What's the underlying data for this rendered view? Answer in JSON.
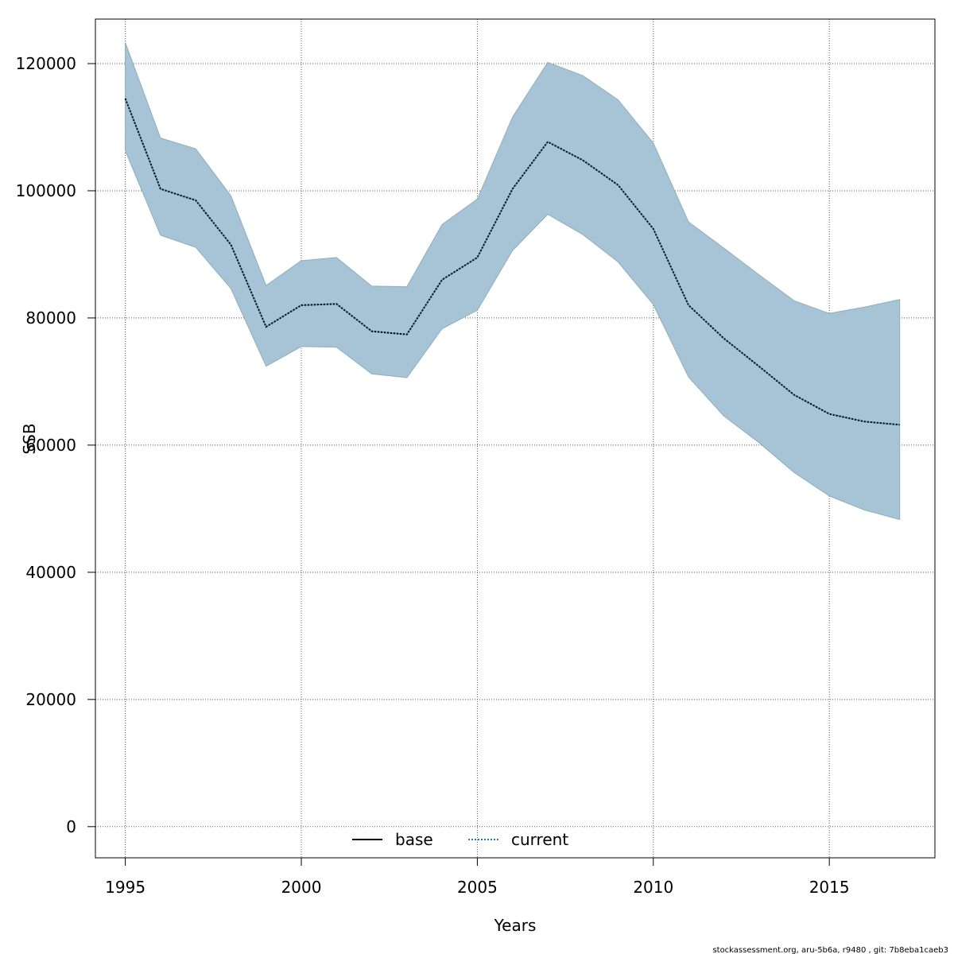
{
  "chart_data": {
    "type": "line",
    "xlabel": "Years",
    "ylabel": "SSB",
    "xlim": [
      1994.15,
      2018.0
    ],
    "ylim": [
      -4900,
      127000
    ],
    "xticks": [
      1995,
      2000,
      2005,
      2010,
      2015
    ],
    "yticks": [
      0,
      20000,
      40000,
      60000,
      80000,
      100000,
      120000
    ],
    "grid": true,
    "legend_position": "bottom-center",
    "years": [
      1995,
      1996,
      1997,
      1998,
      1999,
      2000,
      2001,
      2002,
      2003,
      2004,
      2005,
      2006,
      2007,
      2008,
      2009,
      2010,
      2011,
      2012,
      2013,
      2014,
      2015,
      2016,
      2017
    ],
    "series": [
      {
        "name": "base",
        "line_style": "solid",
        "color": "#000000",
        "values": [
          114500,
          100300,
          98500,
          91500,
          78600,
          82000,
          82200,
          77900,
          77400,
          86000,
          89500,
          100300,
          107700,
          104800,
          100900,
          94000,
          82000,
          76800,
          72400,
          67900,
          64900,
          63700,
          63200
        ]
      },
      {
        "name": "current",
        "line_style": "dotted",
        "color": "#1f77b4",
        "values": [
          114500,
          100300,
          98500,
          91500,
          78600,
          82000,
          82200,
          77900,
          77400,
          86000,
          89500,
          100300,
          107700,
          104800,
          100900,
          94000,
          82000,
          76800,
          72400,
          67900,
          64900,
          63700,
          63200
        ]
      }
    ],
    "confidence_band": {
      "color": "#a6c4d5",
      "upper": [
        123300,
        108300,
        106600,
        99200,
        85100,
        89000,
        89500,
        85000,
        84900,
        94700,
        98700,
        111600,
        120200,
        118100,
        114300,
        107500,
        95100,
        91000,
        86800,
        82700,
        80700,
        81700,
        82900
      ],
      "lower": [
        106300,
        93000,
        91100,
        84600,
        72400,
        75500,
        75400,
        71200,
        70600,
        78300,
        81200,
        90600,
        96300,
        93100,
        88800,
        82100,
        70700,
        64600,
        60400,
        55700,
        52000,
        49800,
        48300
      ]
    }
  },
  "footer": {
    "text": "stockassessment.org, aru-5b6a, r9480 , git: 7b8eba1caeb3"
  },
  "colors": {
    "band_fill": "#a6c4d5",
    "band_edge": "#8faebd",
    "axis": "#000000",
    "grid": "#555555"
  }
}
